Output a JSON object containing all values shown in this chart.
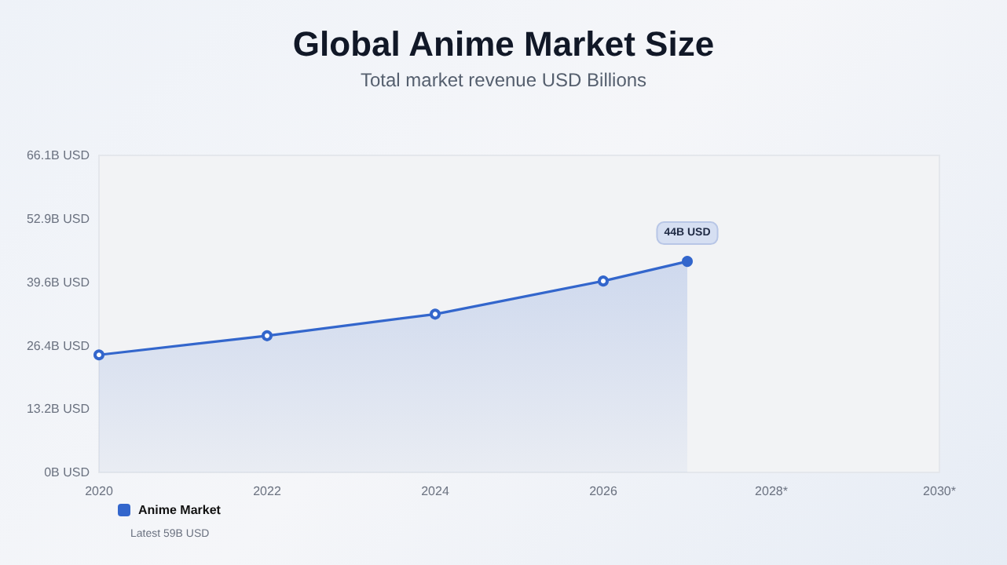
{
  "chart_data": {
    "type": "area",
    "title": "Global Anime Market Size",
    "subtitle": "Total market revenue USD Billions",
    "x": [
      2020,
      2022,
      2024,
      2026,
      2027
    ],
    "series": [
      {
        "name": "Anime Market",
        "color": "#3366cc",
        "values": [
          24.5,
          28.5,
          33.0,
          39.9,
          44
        ],
        "value_labels": [
          null,
          null,
          null,
          null,
          "44B USD"
        ]
      }
    ],
    "xlim": [
      2020,
      2030
    ],
    "xticks": [
      2020,
      2022,
      2024,
      2026,
      {
        "value": 2028,
        "label": "2028*"
      },
      {
        "value": 2030,
        "label": "2030*"
      }
    ],
    "ylim": [
      0,
      66.1
    ],
    "yticks": [
      {
        "value": 0,
        "label": "0B USD"
      },
      {
        "value": 13.2,
        "label": "13.2B USD"
      },
      {
        "value": 26.4,
        "label": "26.4B USD"
      },
      {
        "value": 39.6,
        "label": "39.6B USD"
      },
      {
        "value": 52.9,
        "label": "52.9B USD"
      },
      {
        "value": 66.1,
        "label": "66.1B USD"
      }
    ],
    "annotations": [
      "Latest 59B USD"
    ],
    "legend": "bottom left",
    "marker": "circle"
  }
}
